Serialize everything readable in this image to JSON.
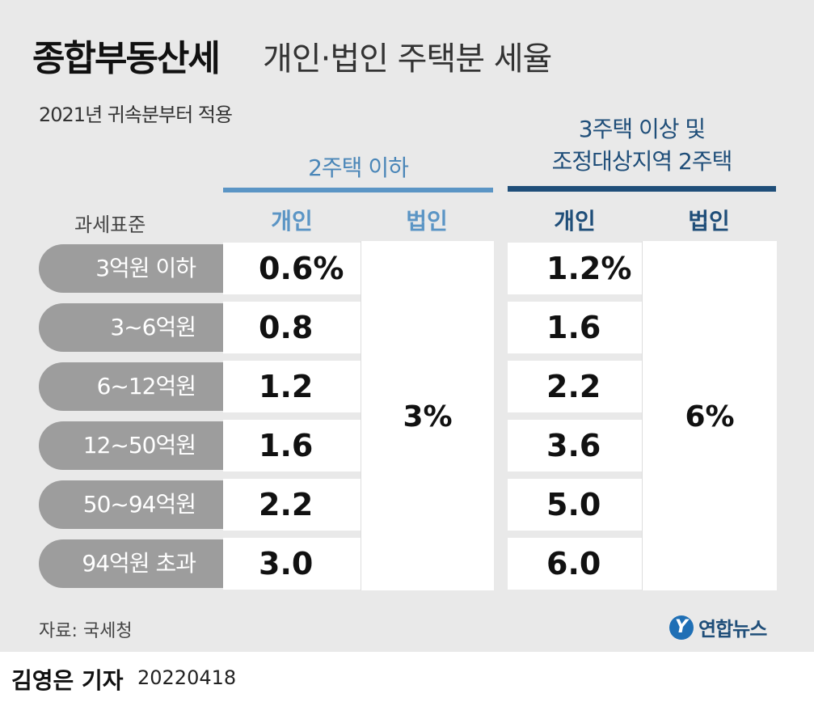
{
  "header": {
    "title_main": "종합부동산세",
    "title_sub": "개인·법인 주택분 세율",
    "subtitle": "2021년 귀속분부터 적용"
  },
  "groups": {
    "group1": "2주택 이하",
    "group2_line1": "3주택 이상 및",
    "group2_line2": "조정대상지역 2주택"
  },
  "columns": {
    "standard": "과세표준",
    "individual": "개인",
    "corporate": "법인"
  },
  "rows": [
    {
      "label": "3억원 이하",
      "g1_ind": "0.6%",
      "g2_ind": "1.2%"
    },
    {
      "label": "3~6억원",
      "g1_ind": "0.8",
      "g2_ind": "1.6"
    },
    {
      "label": "6~12억원",
      "g1_ind": "1.2",
      "g2_ind": "2.2"
    },
    {
      "label": "12~50억원",
      "g1_ind": "1.6",
      "g2_ind": "3.6"
    },
    {
      "label": "50~94억원",
      "g1_ind": "2.2",
      "g2_ind": "5.0"
    },
    {
      "label": "94억원 초과",
      "g1_ind": "3.0",
      "g2_ind": "6.0"
    }
  ],
  "corporate_rates": {
    "group1": "3%",
    "group2": "6%"
  },
  "footer": {
    "source": "자료: 국세청",
    "reporter": "김영은 기자",
    "date": "20220418",
    "logo_text": "연합뉴스",
    "logo_mark": "Y"
  },
  "colors": {
    "group1": "#5b95c5",
    "group2": "#1f4e79",
    "row_label_bg": "#9d9d9d"
  }
}
